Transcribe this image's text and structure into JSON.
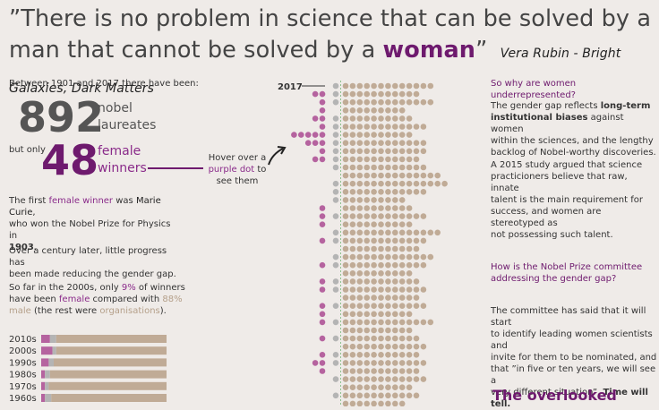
{
  "quote": {
    "open": "”There is no problem in science that can be solved by a man that cannot be solved by a ",
    "emph": "woman",
    "close": "”",
    "author": "Vera Rubin",
    "source": " - Bright Galaxies, Dark Matters"
  },
  "stats": {
    "intro": "Between 1901 and 2017 there have been:",
    "total": "892",
    "total_label_1": "nobel",
    "total_label_2": "laureates",
    "but_only": "but only",
    "female": "48",
    "female_label_1": "female",
    "female_label_2": "winners"
  },
  "hover_hint": {
    "line1": "Hover over a",
    "link": "purple dot",
    "line2": " to",
    "line3": "see them"
  },
  "left_text": {
    "p1_a": "The first ",
    "p1_link": "female winner",
    "p1_b": " was ",
    "p1_name": "Marie Curie",
    "p1_c": ",",
    "p1_d": "who won the Nobel Prize for Physics in",
    "p1_year": "1903",
    "p1_e": ".",
    "p2_a": "Over a century later, little progress has",
    "p2_b": "been made reducing the gender gap.",
    "p3_a": "So far in the 2000s, only ",
    "p3_pct": "9%",
    "p3_b": " of winners",
    "p3_c": "have been ",
    "p3_female": "female",
    "p3_d": " compared with ",
    "p3_pct2": "88%",
    "p3_male": "male",
    "p3_e": " (the rest were ",
    "p3_org": "organisations",
    "p3_f": ")."
  },
  "right_text": {
    "h1": "So why are women underrepresented?",
    "p1_a": "The gender gap reflects ",
    "p1_b": "long-term",
    "p1_c": "institutional biases",
    "p1_d": " against women",
    "p1_e": "within the sciences, and the lengthy",
    "p1_f": "backlog of Nobel-worthy discoveries.",
    "p2_a": "A 2015 study argued that science",
    "p2_b": "practicioners believe that raw, innate",
    "p2_c": "talent is the main requirement for",
    "p2_d": "success, and women are stereotyped as",
    "p2_e": "not possessing such talent.",
    "h2_a": "How is the Nobel Prize committee",
    "h2_b": "addressing the gender gap?",
    "p3_a": "The committee has said that it will start",
    "p3_b": "to identify leading women scientists and",
    "p3_c": "invite for them to be nominated, and",
    "p3_d": "that ”in five or ten years, we will see a",
    "p3_e": "very different situation”. ",
    "p3_f": "Time will tell.",
    "overlooked": "The overlooked"
  },
  "colors": {
    "female": "#b5639f",
    "male": "#c0ab96",
    "org": "#b4b4b4",
    "purple": "#6e1a6e",
    "bar_bg": "#c0ab96"
  },
  "chart_data": [
    {
      "type": "bar",
      "title": "",
      "categories": [
        "2010s",
        "2000s",
        "1990s",
        "1980s",
        "1970s",
        "1960s"
      ],
      "series": [
        {
          "name": "female",
          "values": [
            0.07,
            0.09,
            0.06,
            0.03,
            0.03,
            0.03
          ]
        },
        {
          "name": "male",
          "values": [
            0.88,
            0.88,
            0.9,
            0.93,
            0.94,
            0.92
          ]
        },
        {
          "name": "organisations",
          "values": [
            0.05,
            0.03,
            0.04,
            0.04,
            0.03,
            0.05
          ]
        }
      ],
      "ylim": [
        0,
        1
      ]
    },
    {
      "type": "scatter",
      "title": "",
      "top_label": "2017",
      "rows": [
        {
          "female": 0,
          "org": 1,
          "male": 13
        },
        {
          "female": 2,
          "org": 1,
          "male": 11
        },
        {
          "female": 1,
          "org": 1,
          "male": 13
        },
        {
          "female": 1,
          "org": 0,
          "male": 9
        },
        {
          "female": 2,
          "org": 1,
          "male": 10
        },
        {
          "female": 1,
          "org": 1,
          "male": 12
        },
        {
          "female": 5,
          "org": 1,
          "male": 10
        },
        {
          "female": 3,
          "org": 1,
          "male": 12
        },
        {
          "female": 1,
          "org": 1,
          "male": 12
        },
        {
          "female": 2,
          "org": 1,
          "male": 11
        },
        {
          "female": 0,
          "org": 1,
          "male": 12
        },
        {
          "female": 0,
          "org": 0,
          "male": 14
        },
        {
          "female": 0,
          "org": 1,
          "male": 15
        },
        {
          "female": 0,
          "org": 1,
          "male": 12
        },
        {
          "female": 0,
          "org": 1,
          "male": 9
        },
        {
          "female": 1,
          "org": 0,
          "male": 10
        },
        {
          "female": 1,
          "org": 1,
          "male": 12
        },
        {
          "female": 1,
          "org": 0,
          "male": 10
        },
        {
          "female": 0,
          "org": 1,
          "male": 14
        },
        {
          "female": 1,
          "org": 1,
          "male": 12
        },
        {
          "female": 0,
          "org": 0,
          "male": 11
        },
        {
          "female": 0,
          "org": 1,
          "male": 13
        },
        {
          "female": 1,
          "org": 1,
          "male": 12
        },
        {
          "female": 0,
          "org": 0,
          "male": 10
        },
        {
          "female": 1,
          "org": 1,
          "male": 11
        },
        {
          "female": 1,
          "org": 1,
          "male": 12
        },
        {
          "female": 0,
          "org": 0,
          "male": 11
        },
        {
          "female": 1,
          "org": 1,
          "male": 12
        },
        {
          "female": 1,
          "org": 0,
          "male": 10
        },
        {
          "female": 1,
          "org": 1,
          "male": 13
        },
        {
          "female": 0,
          "org": 0,
          "male": 10
        },
        {
          "female": 1,
          "org": 1,
          "male": 11
        },
        {
          "female": 0,
          "org": 0,
          "male": 12
        },
        {
          "female": 1,
          "org": 1,
          "male": 11
        },
        {
          "female": 2,
          "org": 1,
          "male": 12
        },
        {
          "female": 1,
          "org": 0,
          "male": 11
        },
        {
          "female": 0,
          "org": 1,
          "male": 12
        },
        {
          "female": 0,
          "org": 0,
          "male": 10
        },
        {
          "female": 0,
          "org": 1,
          "male": 11
        },
        {
          "female": 0,
          "org": 0,
          "male": 9
        }
      ]
    }
  ]
}
